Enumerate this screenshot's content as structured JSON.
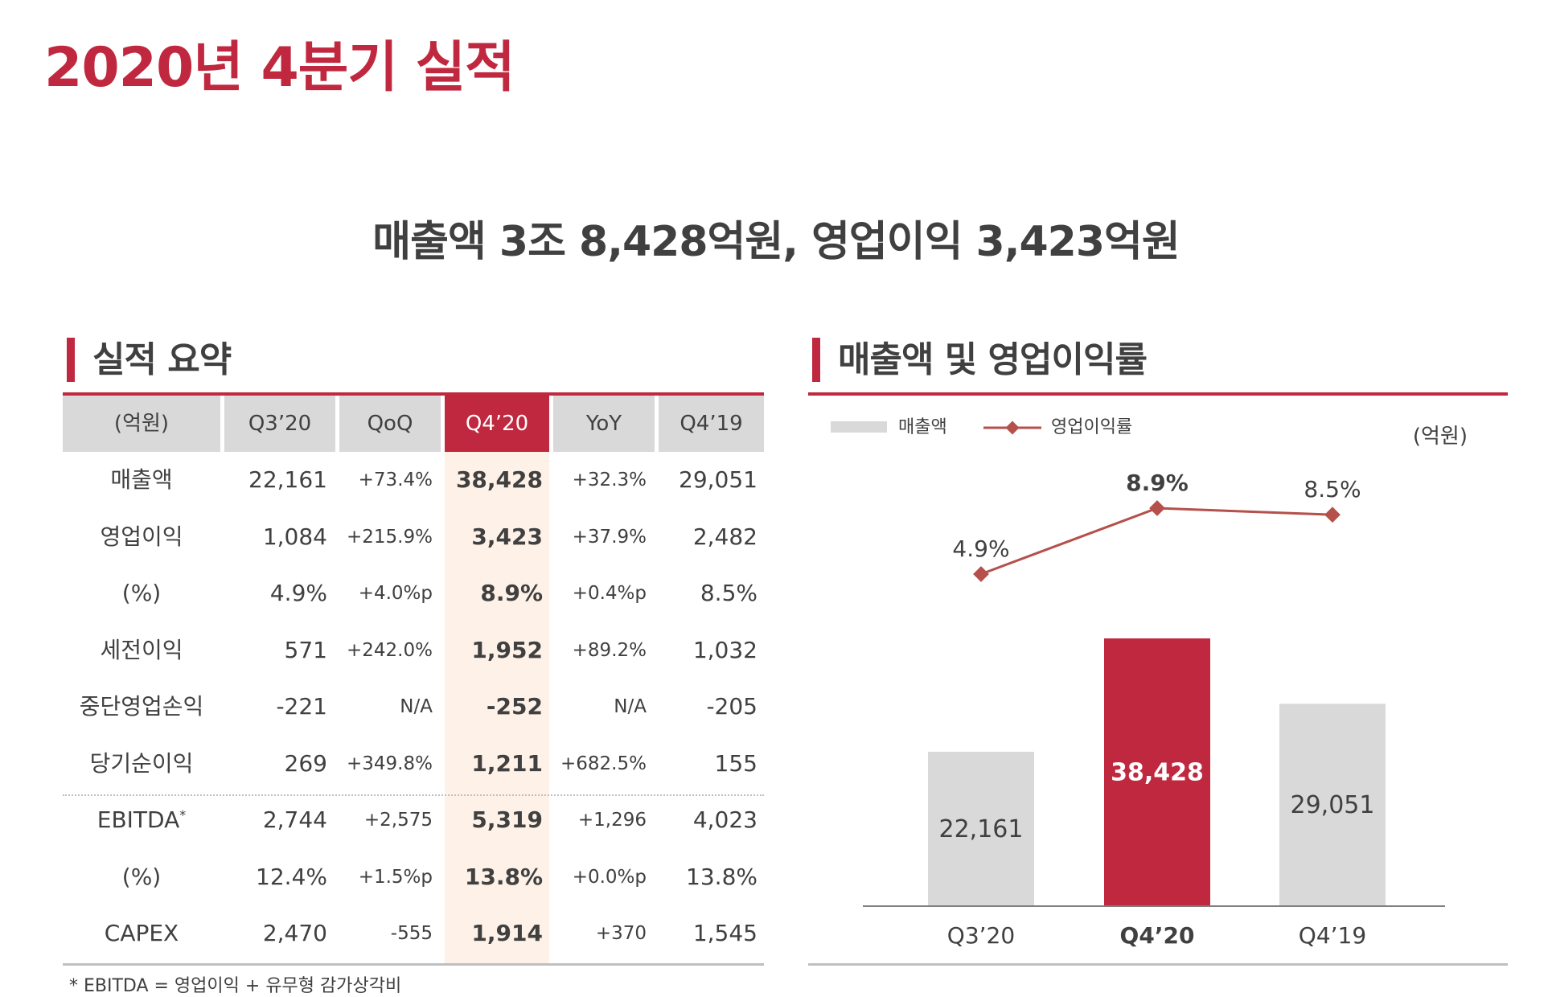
{
  "page": {
    "title": "2020년 4분기 실적",
    "headline": "매출액 3조 8,428억원, 영업이익 3,423억원"
  },
  "summary": {
    "section_title": "실적 요약",
    "headers": [
      "(억원)",
      "Q3’20",
      "QoQ",
      "Q4’20",
      "YoY",
      "Q4’19"
    ],
    "rows": [
      {
        "label": "매출액",
        "sup": "",
        "cells": [
          "22,161",
          "+73.4%",
          "38,428",
          "+32.3%",
          "29,051"
        ]
      },
      {
        "label": "영업이익",
        "sup": "",
        "cells": [
          "1,084",
          "+215.9%",
          "3,423",
          "+37.9%",
          "2,482"
        ]
      },
      {
        "label": "(%)",
        "sup": "",
        "cells": [
          "4.9%",
          "+4.0%p",
          "8.9%",
          "+0.4%p",
          "8.5%"
        ]
      },
      {
        "label": "세전이익",
        "sup": "",
        "cells": [
          "571",
          "+242.0%",
          "1,952",
          "+89.2%",
          "1,032"
        ]
      },
      {
        "label": "중단영업손익",
        "sup": "",
        "cells": [
          "-221",
          "N/A",
          "-252",
          "N/A",
          "-205"
        ]
      },
      {
        "label": "당기순이익",
        "sup": "",
        "cells": [
          "269",
          "+349.8%",
          "1,211",
          "+682.5%",
          "155"
        ]
      },
      {
        "label": "EBITDA",
        "sup": "*",
        "cells": [
          "2,744",
          "+2,575",
          "5,319",
          "+1,296",
          "4,023"
        ]
      },
      {
        "label": "(%)",
        "sup": "",
        "cells": [
          "12.4%",
          "+1.5%p",
          "13.8%",
          "+0.0%p",
          "13.8%"
        ]
      },
      {
        "label": "CAPEX",
        "sup": "",
        "cells": [
          "2,470",
          "-555",
          "1,914",
          "+370",
          "1,545"
        ]
      }
    ],
    "footnote": "* EBITDA = 영업이익 + 유무형 감가상각비"
  },
  "chart_section": {
    "title": "매출액 및 영업이익률",
    "unit": "(억원)"
  },
  "chart_data": {
    "type": "bar",
    "categories": [
      "Q3’20",
      "Q4’20",
      "Q4’19"
    ],
    "highlight_category": "Q4’20",
    "series": [
      {
        "name": "매출액",
        "kind": "bar",
        "values": [
          22161,
          38428,
          29051
        ],
        "labels": [
          "22,161",
          "38,428",
          "29,051"
        ]
      },
      {
        "name": "영업이익률",
        "kind": "line",
        "values": [
          4.9,
          8.9,
          8.5
        ],
        "labels": [
          "4.9%",
          "8.9%",
          "8.5%"
        ]
      }
    ],
    "colors": {
      "bar": "#d9d9d9",
      "bar_highlight": "#c0283f",
      "line": "#b5504a"
    },
    "legend": "top-left",
    "grid": false
  },
  "colors": {
    "accent": "#c0283f",
    "highlight_col": "#fdf1e8",
    "header_bg": "#d9d9d9"
  }
}
